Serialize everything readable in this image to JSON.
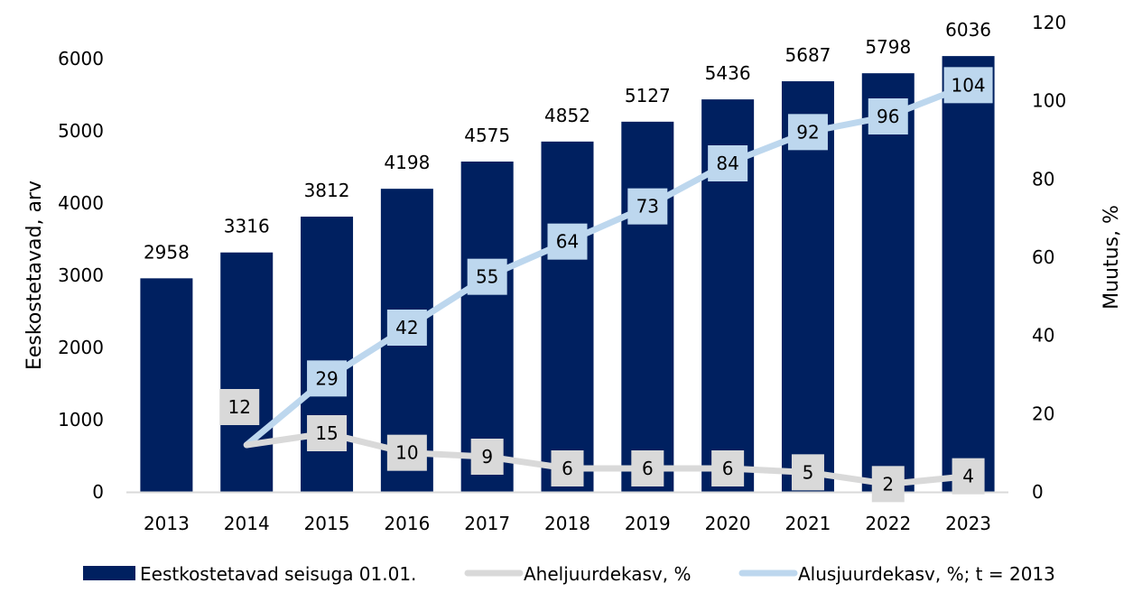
{
  "chart_data": {
    "type": "bar+line",
    "title": "",
    "categories": [
      "2013",
      "2014",
      "2015",
      "2016",
      "2017",
      "2018",
      "2019",
      "2020",
      "2021",
      "2022",
      "2023"
    ],
    "series": [
      {
        "name": "Eestkostetavad seisuga 01.01.",
        "type": "bar",
        "axis": "left",
        "color": "#002060",
        "values": [
          2958,
          3316,
          3812,
          4198,
          4575,
          4852,
          5127,
          5436,
          5687,
          5798,
          6036
        ]
      },
      {
        "name": "Aheljuurdekasv, %",
        "type": "line",
        "axis": "right",
        "color": "#D9D9D9",
        "values": [
          null,
          12,
          15,
          10,
          9,
          6,
          6,
          6,
          5,
          2,
          4
        ]
      },
      {
        "name": "Alusjuurdekasv, %; t = 2013",
        "type": "line",
        "axis": "right",
        "color": "#BDD7EE",
        "values": [
          null,
          12,
          29,
          42,
          55,
          64,
          73,
          84,
          92,
          96,
          104
        ]
      }
    ],
    "left_axis": {
      "label": "Eeskostetavad, arv",
      "ylim": [
        0,
        6000
      ],
      "ticks": [
        "0",
        "1000",
        "2000",
        "3000",
        "4000",
        "5000",
        "6000"
      ]
    },
    "right_axis": {
      "label": "Muutus, %",
      "ylim": [
        0,
        120
      ],
      "ticks": [
        "0",
        "20",
        "40",
        "60",
        "80",
        "100",
        "120"
      ]
    },
    "grid": false,
    "legend_position": "bottom"
  },
  "legend": [
    {
      "label": "Eestkostetavad seisuga 01.01.",
      "kind": "box",
      "color": "#002060"
    },
    {
      "label": "Aheljuurdekasv, %",
      "kind": "line",
      "color": "#D9D9D9"
    },
    {
      "label": "Alusjuurdekasv, %; t = 2013",
      "kind": "line",
      "color": "#BDD7EE"
    }
  ]
}
